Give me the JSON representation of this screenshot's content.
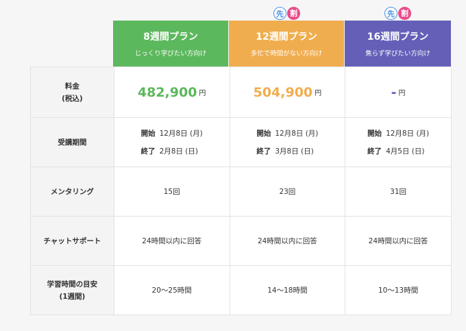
{
  "badge": {
    "first": "先",
    "second": "割"
  },
  "plans": [
    {
      "name": "8週間プラン",
      "desc": "じっくり学びたい方向け",
      "color": "#5cb85c",
      "price": "482,900",
      "price_color": "#5cb85c",
      "start": "12月8日 (月)",
      "end": "2月8日 (日)",
      "mentoring": "15回",
      "chat": "24時間以内に回答",
      "study": "20〜25時間"
    },
    {
      "name": "12週間プラン",
      "desc": "多忙で時間がない方向け",
      "color": "#f0ad4e",
      "price": "504,900",
      "price_color": "#f0ad4e",
      "start": "12月8日 (月)",
      "end": "3月8日 (日)",
      "mentoring": "23回",
      "chat": "24時間以内に回答",
      "study": "14〜18時間"
    },
    {
      "name": "16週間プラン",
      "desc": "焦らず学びたい方向け",
      "color": "#6460b8",
      "price": "-",
      "price_color": "#6460b8",
      "start": "12月8日 (月)",
      "end": "4月5日 (日)",
      "mentoring": "31回",
      "chat": "24時間以内に回答",
      "study": "10〜13時間"
    }
  ],
  "labels": {
    "price": "料金\n(税込)",
    "period": "受講期間",
    "mentoring": "メンタリング",
    "chat": "チャットサポート",
    "study": "学習時間の目安\n(1週間)",
    "yen": "円",
    "start": "開始",
    "end": "終了"
  }
}
